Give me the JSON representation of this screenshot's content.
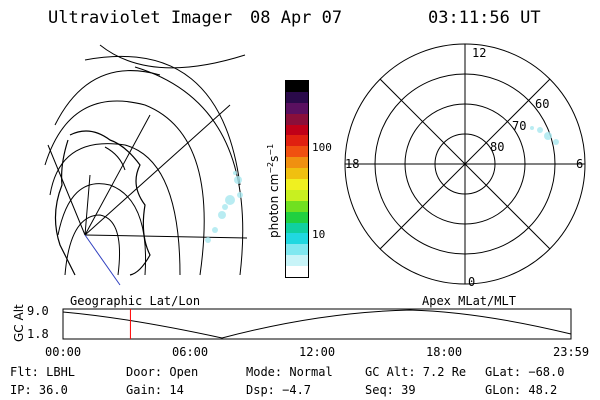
{
  "header": {
    "title": "Ultraviolet Imager",
    "date": "08 Apr 07",
    "time": "03:11:56 UT"
  },
  "colorbar": {
    "unit_label": "photon cm",
    "unit_exp1": "−2",
    "unit_mid": "s",
    "unit_exp2": "−1",
    "tick_100": "100",
    "tick_10": "10",
    "colors": [
      "#000000",
      "#2a0a4a",
      "#5a1060",
      "#8a0f3a",
      "#c00018",
      "#e02010",
      "#f05010",
      "#f09010",
      "#f0c010",
      "#f0f020",
      "#c8f020",
      "#70e020",
      "#20d040",
      "#10d0a0",
      "#20d8e0",
      "#80e8f0",
      "#c8f4f8",
      "#ffffff"
    ]
  },
  "left_map": {
    "label": "Geographic Lat/Lon"
  },
  "polar": {
    "label": "Apex MLat/MLT",
    "mlt_12": "12",
    "mlt_18": "18",
    "mlt_6": "6",
    "mlt_0": "0",
    "lat_60": "60",
    "lat_70": "70",
    "lat_80": "80"
  },
  "altitude": {
    "axis_title": "GC Alt",
    "y_top": "9.0",
    "y_bottom": "1.8",
    "x_ticks": [
      "00:00",
      "06:00",
      "12:00",
      "18:00",
      "23:59"
    ],
    "current_marker_time": "03:11",
    "marker_color": "#ff0000"
  },
  "footer": {
    "filter": "Flt: LBHL",
    "door": "Door: Open",
    "mode": "Mode: Normal",
    "gc_alt": "GC Alt: 7.2 Re",
    "glat": "GLat: −68.0",
    "ip": "IP: 36.0",
    "gain": "Gain: 14",
    "dsp": "Dsp:   −4.7",
    "seq": "Seq: 39",
    "glon": "GLon:  48.2"
  }
}
